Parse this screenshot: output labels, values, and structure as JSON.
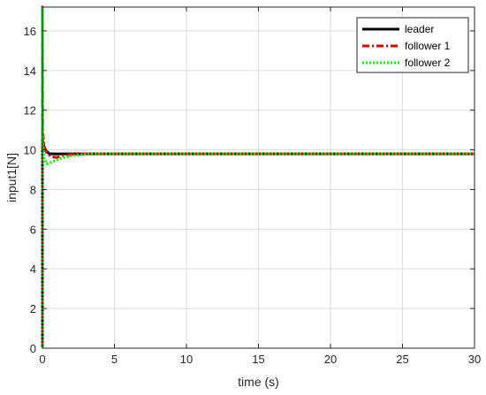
{
  "chart_data": {
    "type": "line",
    "xlabel": "time (s)",
    "ylabel": "input1[N]",
    "xlim": [
      0,
      30
    ],
    "ylim": [
      0,
      17.2
    ],
    "xticks": [
      0,
      5,
      10,
      15,
      20,
      25,
      30
    ],
    "yticks": [
      0,
      2,
      4,
      6,
      8,
      10,
      12,
      14,
      16
    ],
    "grid": true,
    "legend_position": "top-right",
    "series": [
      {
        "name": "leader",
        "color": "#000000",
        "style": "solid",
        "points": [
          [
            0,
            0
          ],
          [
            0,
            10.6
          ],
          [
            0.1,
            10.2
          ],
          [
            0.25,
            9.95
          ],
          [
            0.5,
            9.8
          ],
          [
            0.8,
            9.8
          ],
          [
            30,
            9.8
          ]
        ]
      },
      {
        "name": "follower 1",
        "color": "#dd0000",
        "style": "dashdot",
        "points": [
          [
            0,
            0
          ],
          [
            0,
            17.2
          ],
          [
            0.02,
            11.0
          ],
          [
            0.1,
            10.2
          ],
          [
            0.3,
            9.85
          ],
          [
            0.6,
            9.65
          ],
          [
            1.0,
            9.62
          ],
          [
            1.5,
            9.72
          ],
          [
            2.2,
            9.79
          ],
          [
            3.0,
            9.8
          ],
          [
            30,
            9.8
          ]
        ]
      },
      {
        "name": "follower 2",
        "color": "#00ee00",
        "style": "dotted",
        "points": [
          [
            0,
            0
          ],
          [
            0,
            17.2
          ],
          [
            0.02,
            10.5
          ],
          [
            0.1,
            9.6
          ],
          [
            0.3,
            9.3
          ],
          [
            0.7,
            9.4
          ],
          [
            1.2,
            9.55
          ],
          [
            2.0,
            9.7
          ],
          [
            3.0,
            9.78
          ],
          [
            4.0,
            9.8
          ],
          [
            30,
            9.8
          ]
        ]
      }
    ]
  }
}
